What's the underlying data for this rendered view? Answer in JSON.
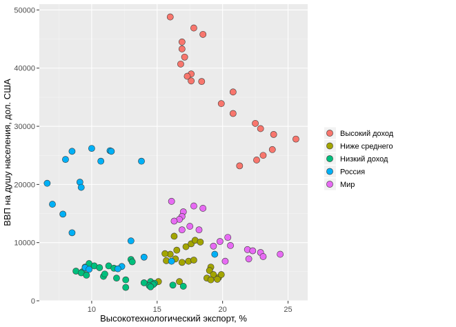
{
  "chart_data": {
    "type": "scatter",
    "title": "",
    "xlabel": "Высокотехнологический экспорт, %",
    "ylabel": "ВВП на душу населения, дол. США",
    "xlim": [
      6,
      26.5
    ],
    "ylim": [
      0,
      51000
    ],
    "x_ticks": [
      10,
      15,
      20,
      25
    ],
    "x_tick_labels": [
      "10",
      "15",
      "20",
      "25"
    ],
    "y_ticks": [
      0,
      10000,
      20000,
      30000,
      40000,
      50000
    ],
    "y_tick_labels": [
      "0",
      "10000",
      "20000",
      "30000",
      "40000",
      "50000"
    ],
    "grid": true,
    "legend_position": "right",
    "series": [
      {
        "name": "Высокий доход",
        "color": "#F8766D",
        "points": [
          [
            16.0,
            48800
          ],
          [
            17.8,
            46900
          ],
          [
            18.5,
            45800
          ],
          [
            16.9,
            44500
          ],
          [
            16.9,
            43300
          ],
          [
            17.1,
            41900
          ],
          [
            16.8,
            40700
          ],
          [
            17.6,
            39000
          ],
          [
            17.3,
            38600
          ],
          [
            17.6,
            37800
          ],
          [
            18.4,
            37700
          ],
          [
            20.8,
            35900
          ],
          [
            19.9,
            33900
          ],
          [
            20.8,
            32200
          ],
          [
            22.5,
            30500
          ],
          [
            22.9,
            29600
          ],
          [
            23.9,
            28600
          ],
          [
            25.6,
            27800
          ],
          [
            23.8,
            26000
          ],
          [
            23.1,
            25000
          ],
          [
            22.6,
            24200
          ],
          [
            21.3,
            23200
          ]
        ]
      },
      {
        "name": "Ниже среднего",
        "color": "#A3A500",
        "points": [
          [
            16.3,
            11100
          ],
          [
            16.0,
            8000
          ],
          [
            15.6,
            8100
          ],
          [
            16.5,
            8700
          ],
          [
            17.2,
            9300
          ],
          [
            17.6,
            9800
          ],
          [
            17.9,
            10400
          ],
          [
            18.3,
            10100
          ],
          [
            15.7,
            6900
          ],
          [
            16.4,
            7200
          ],
          [
            16.9,
            6600
          ],
          [
            17.4,
            6800
          ],
          [
            17.8,
            7000
          ],
          [
            19.1,
            5800
          ],
          [
            19.0,
            5200
          ],
          [
            19.3,
            4500
          ],
          [
            19.7,
            4000
          ],
          [
            19.9,
            4500
          ],
          [
            19.6,
            3700
          ],
          [
            18.8,
            3900
          ],
          [
            19.1,
            3600
          ],
          [
            16.7,
            3300
          ],
          [
            15.1,
            3300
          ]
        ]
      },
      {
        "name": "Низкий доход",
        "color": "#00BF7D",
        "points": [
          [
            8.8,
            5100
          ],
          [
            9.3,
            5000
          ],
          [
            9.5,
            5800
          ],
          [
            9.8,
            6400
          ],
          [
            10.2,
            6000
          ],
          [
            10.6,
            5700
          ],
          [
            11.3,
            6000
          ],
          [
            11.7,
            5600
          ],
          [
            13.0,
            7100
          ],
          [
            13.1,
            6700
          ],
          [
            9.2,
            4800
          ],
          [
            9.6,
            4400
          ],
          [
            10.9,
            4200
          ],
          [
            11.0,
            4600
          ],
          [
            11.9,
            3900
          ],
          [
            12.6,
            3600
          ],
          [
            14.0,
            3100
          ],
          [
            14.5,
            3300
          ],
          [
            14.8,
            3000
          ],
          [
            14.7,
            2800
          ],
          [
            14.4,
            2600
          ],
          [
            14.5,
            2400
          ],
          [
            16.2,
            2700
          ],
          [
            17.0,
            2500
          ],
          [
            12.6,
            2300
          ]
        ]
      },
      {
        "name": "Россия",
        "color": "#00B0F6",
        "points": [
          [
            10.0,
            26200
          ],
          [
            11.4,
            25800
          ],
          [
            8.5,
            25700
          ],
          [
            11.5,
            25700
          ],
          [
            8.0,
            24300
          ],
          [
            10.7,
            24000
          ],
          [
            13.8,
            24000
          ],
          [
            6.6,
            20200
          ],
          [
            9.1,
            20400
          ],
          [
            9.2,
            19500
          ],
          [
            7.0,
            16600
          ],
          [
            7.8,
            14900
          ],
          [
            8.5,
            11700
          ],
          [
            13.0,
            10300
          ],
          [
            9.5,
            5700
          ],
          [
            9.8,
            5400
          ],
          [
            12.3,
            5900
          ],
          [
            12.0,
            5500
          ],
          [
            14.0,
            7500
          ],
          [
            16.1,
            6800
          ],
          [
            19.4,
            8000
          ]
        ]
      },
      {
        "name": "Мир",
        "color": "#E76BF3",
        "points": [
          [
            16.1,
            17100
          ],
          [
            17.8,
            16300
          ],
          [
            18.5,
            15900
          ],
          [
            17.0,
            15300
          ],
          [
            16.9,
            14500
          ],
          [
            16.7,
            14000
          ],
          [
            16.3,
            13700
          ],
          [
            17.5,
            12800
          ],
          [
            16.9,
            12200
          ],
          [
            18.2,
            12200
          ],
          [
            20.4,
            10900
          ],
          [
            19.3,
            9400
          ],
          [
            19.8,
            10200
          ],
          [
            20.6,
            9500
          ],
          [
            21.9,
            8800
          ],
          [
            22.3,
            8600
          ],
          [
            22.9,
            8300
          ],
          [
            23.1,
            7600
          ],
          [
            24.4,
            8000
          ],
          [
            20.2,
            6800
          ],
          [
            22.0,
            7200
          ]
        ]
      }
    ]
  }
}
